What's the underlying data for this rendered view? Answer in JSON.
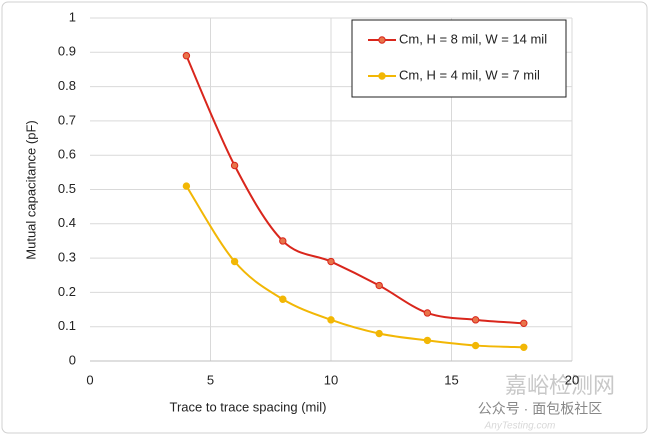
{
  "chart_data": {
    "type": "line",
    "x_label": "Trace to trace spacing (mil)",
    "y_label": "Mutual capacitance (pF)",
    "x": [
      4,
      6,
      8,
      10,
      12,
      14,
      16,
      18
    ],
    "series": [
      {
        "name": "Cm, H = 8 mil, W = 14 mil",
        "color": "#d9261c",
        "marker_fill": "#e8744a",
        "values": [
          0.89,
          0.57,
          0.35,
          0.29,
          0.22,
          0.14,
          0.12,
          0.11
        ]
      },
      {
        "name": "Cm, H = 4 mil, W = 7 mil",
        "color": "#f2b705",
        "marker_fill": "#f2b705",
        "values": [
          0.51,
          0.29,
          0.18,
          0.12,
          0.08,
          0.06,
          0.045,
          0.04
        ]
      }
    ],
    "xlim": [
      0,
      20
    ],
    "xticks": [
      0,
      5,
      10,
      15,
      20
    ],
    "ylim": [
      0,
      1
    ],
    "yticks": [
      0,
      0.1,
      0.2,
      0.3,
      0.4,
      0.5,
      0.6,
      0.7,
      0.8,
      0.9,
      1
    ],
    "grid": true,
    "smooth": true,
    "legend": "top-right"
  },
  "watermark": [
    "嘉峪检测网",
    "公众号 · 面包板社区",
    "AnyTesting.com"
  ]
}
